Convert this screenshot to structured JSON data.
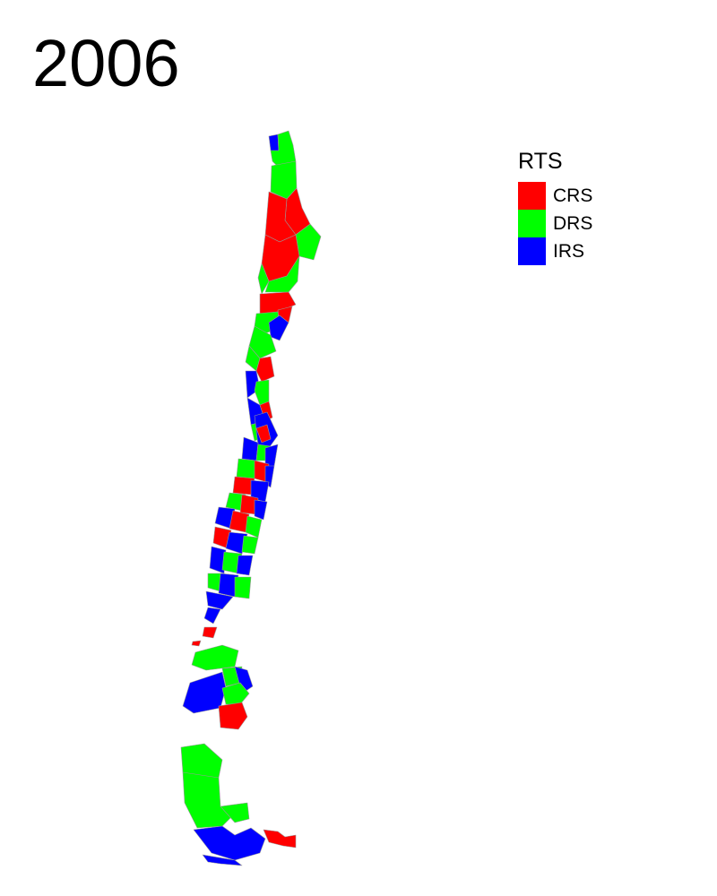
{
  "title": "2006",
  "legend": {
    "title": "RTS",
    "items": [
      {
        "label": "CRS",
        "color": "#ff0000"
      },
      {
        "label": "DRS",
        "color": "#00ff00"
      },
      {
        "label": "IRS",
        "color": "#0000ff"
      }
    ]
  },
  "colors": {
    "crs": "#ff0000",
    "drs": "#00ff00",
    "irs": "#0000ff",
    "border": "#9a9a9a"
  }
}
